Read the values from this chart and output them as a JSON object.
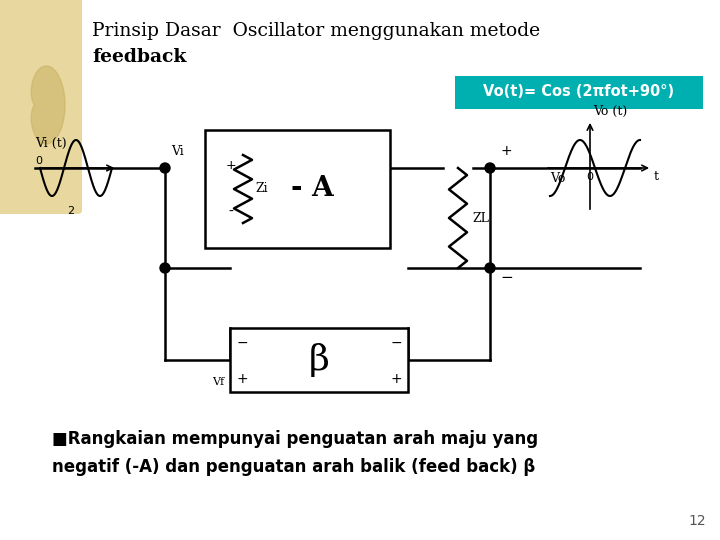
{
  "title_line1": "Prinsip Dasar  Oscillator menggunakan metode",
  "title_line2": "feedback",
  "equation_text": "Vo(t)= Cos (2πfot+90°)",
  "equation_bg": "#00b0b0",
  "equation_text_color": "#ffffff",
  "bottom_text_line1": "■Rangkaian mempunyai penguatan arah maju yang",
  "bottom_text_line2": "negatif (-A) dan penguatan arah balik (feed back) β",
  "slide_number": "12",
  "bg_color": "#ffffff",
  "left_deco_color": "#e8d8a0",
  "title_color": "#000000",
  "circuit_color": "#000000",
  "bottom_text_color": "#000000"
}
